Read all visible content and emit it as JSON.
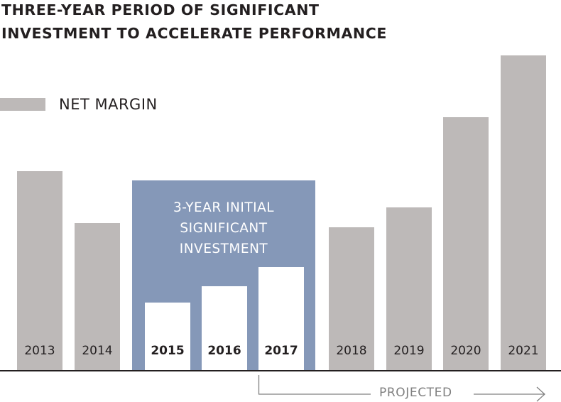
{
  "chart_data": {
    "type": "bar",
    "title": "THREE-YEAR PERIOD OF SIGNIFICANT INVESTMENT TO ACCELERATE PERFORMANCE",
    "title_lines": [
      "THREE-YEAR PERIOD OF SIGNIFICANT",
      "INVESTMENT TO ACCELERATE PERFORMANCE"
    ],
    "legend": {
      "label": "NET MARGIN",
      "position": "top-left"
    },
    "categories": [
      "2013",
      "2014",
      "2015",
      "2016",
      "2017",
      "2018",
      "2019",
      "2020",
      "2021"
    ],
    "series": [
      {
        "name": "NET MARGIN",
        "values": [
          281,
          208,
          96,
          119,
          146,
          202,
          230,
          357,
          444
        ]
      }
    ],
    "values_note_unitless": true,
    "highlight": {
      "label": "3-YEAR INITIAL\nSIGNIFICANT\nINVESTMENT",
      "categories": [
        "2015",
        "2016",
        "2017"
      ]
    },
    "projected": {
      "label": "PROJECTED",
      "from": "2017"
    },
    "grid": false,
    "colors": {
      "bar": "#bdb9b8",
      "highlight_bg": "#8598b8",
      "highlight_bar": "#ffffff",
      "text": "#231f20",
      "projected": "#808080"
    }
  }
}
